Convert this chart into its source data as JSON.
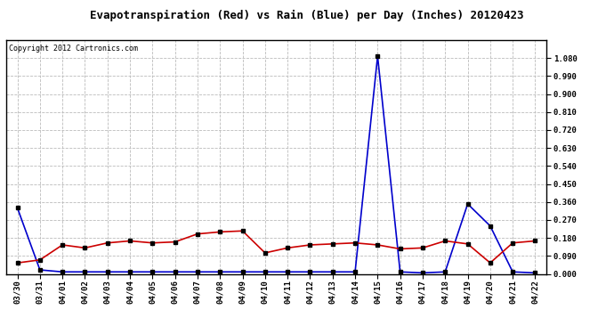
{
  "title": "Evapotranspiration (Red) vs Rain (Blue) per Day (Inches) 20120423",
  "copyright": "Copyright 2012 Cartronics.com",
  "dates": [
    "03/30",
    "03/31",
    "04/01",
    "04/02",
    "04/03",
    "04/04",
    "04/05",
    "04/06",
    "04/07",
    "04/08",
    "04/09",
    "04/10",
    "04/11",
    "04/12",
    "04/13",
    "04/14",
    "04/15",
    "04/16",
    "04/17",
    "04/18",
    "04/19",
    "04/20",
    "04/21",
    "04/22"
  ],
  "rain_blue": [
    0.33,
    0.02,
    0.01,
    0.01,
    0.01,
    0.01,
    0.01,
    0.01,
    0.01,
    0.01,
    0.01,
    0.01,
    0.01,
    0.01,
    0.01,
    0.01,
    1.09,
    0.01,
    0.005,
    0.01,
    0.35,
    0.24,
    0.01,
    0.005
  ],
  "et_red": [
    0.055,
    0.07,
    0.145,
    0.13,
    0.155,
    0.165,
    0.155,
    0.16,
    0.2,
    0.21,
    0.215,
    0.105,
    0.13,
    0.145,
    0.15,
    0.155,
    0.145,
    0.125,
    0.13,
    0.165,
    0.15,
    0.055,
    0.155,
    0.165
  ],
  "ylim": [
    0.0,
    1.17
  ],
  "yticks": [
    0.0,
    0.09,
    0.18,
    0.27,
    0.36,
    0.45,
    0.54,
    0.63,
    0.72,
    0.81,
    0.9,
    0.99,
    1.08
  ],
  "background_color": "#ffffff",
  "grid_color": "#bbbbbb",
  "title_fontsize": 9,
  "copyright_fontsize": 6,
  "tick_fontsize": 6.5,
  "line_color_blue": "#0000cc",
  "line_color_red": "#cc0000",
  "marker_color": "#000000",
  "linewidth": 1.2,
  "markersize": 2.5
}
